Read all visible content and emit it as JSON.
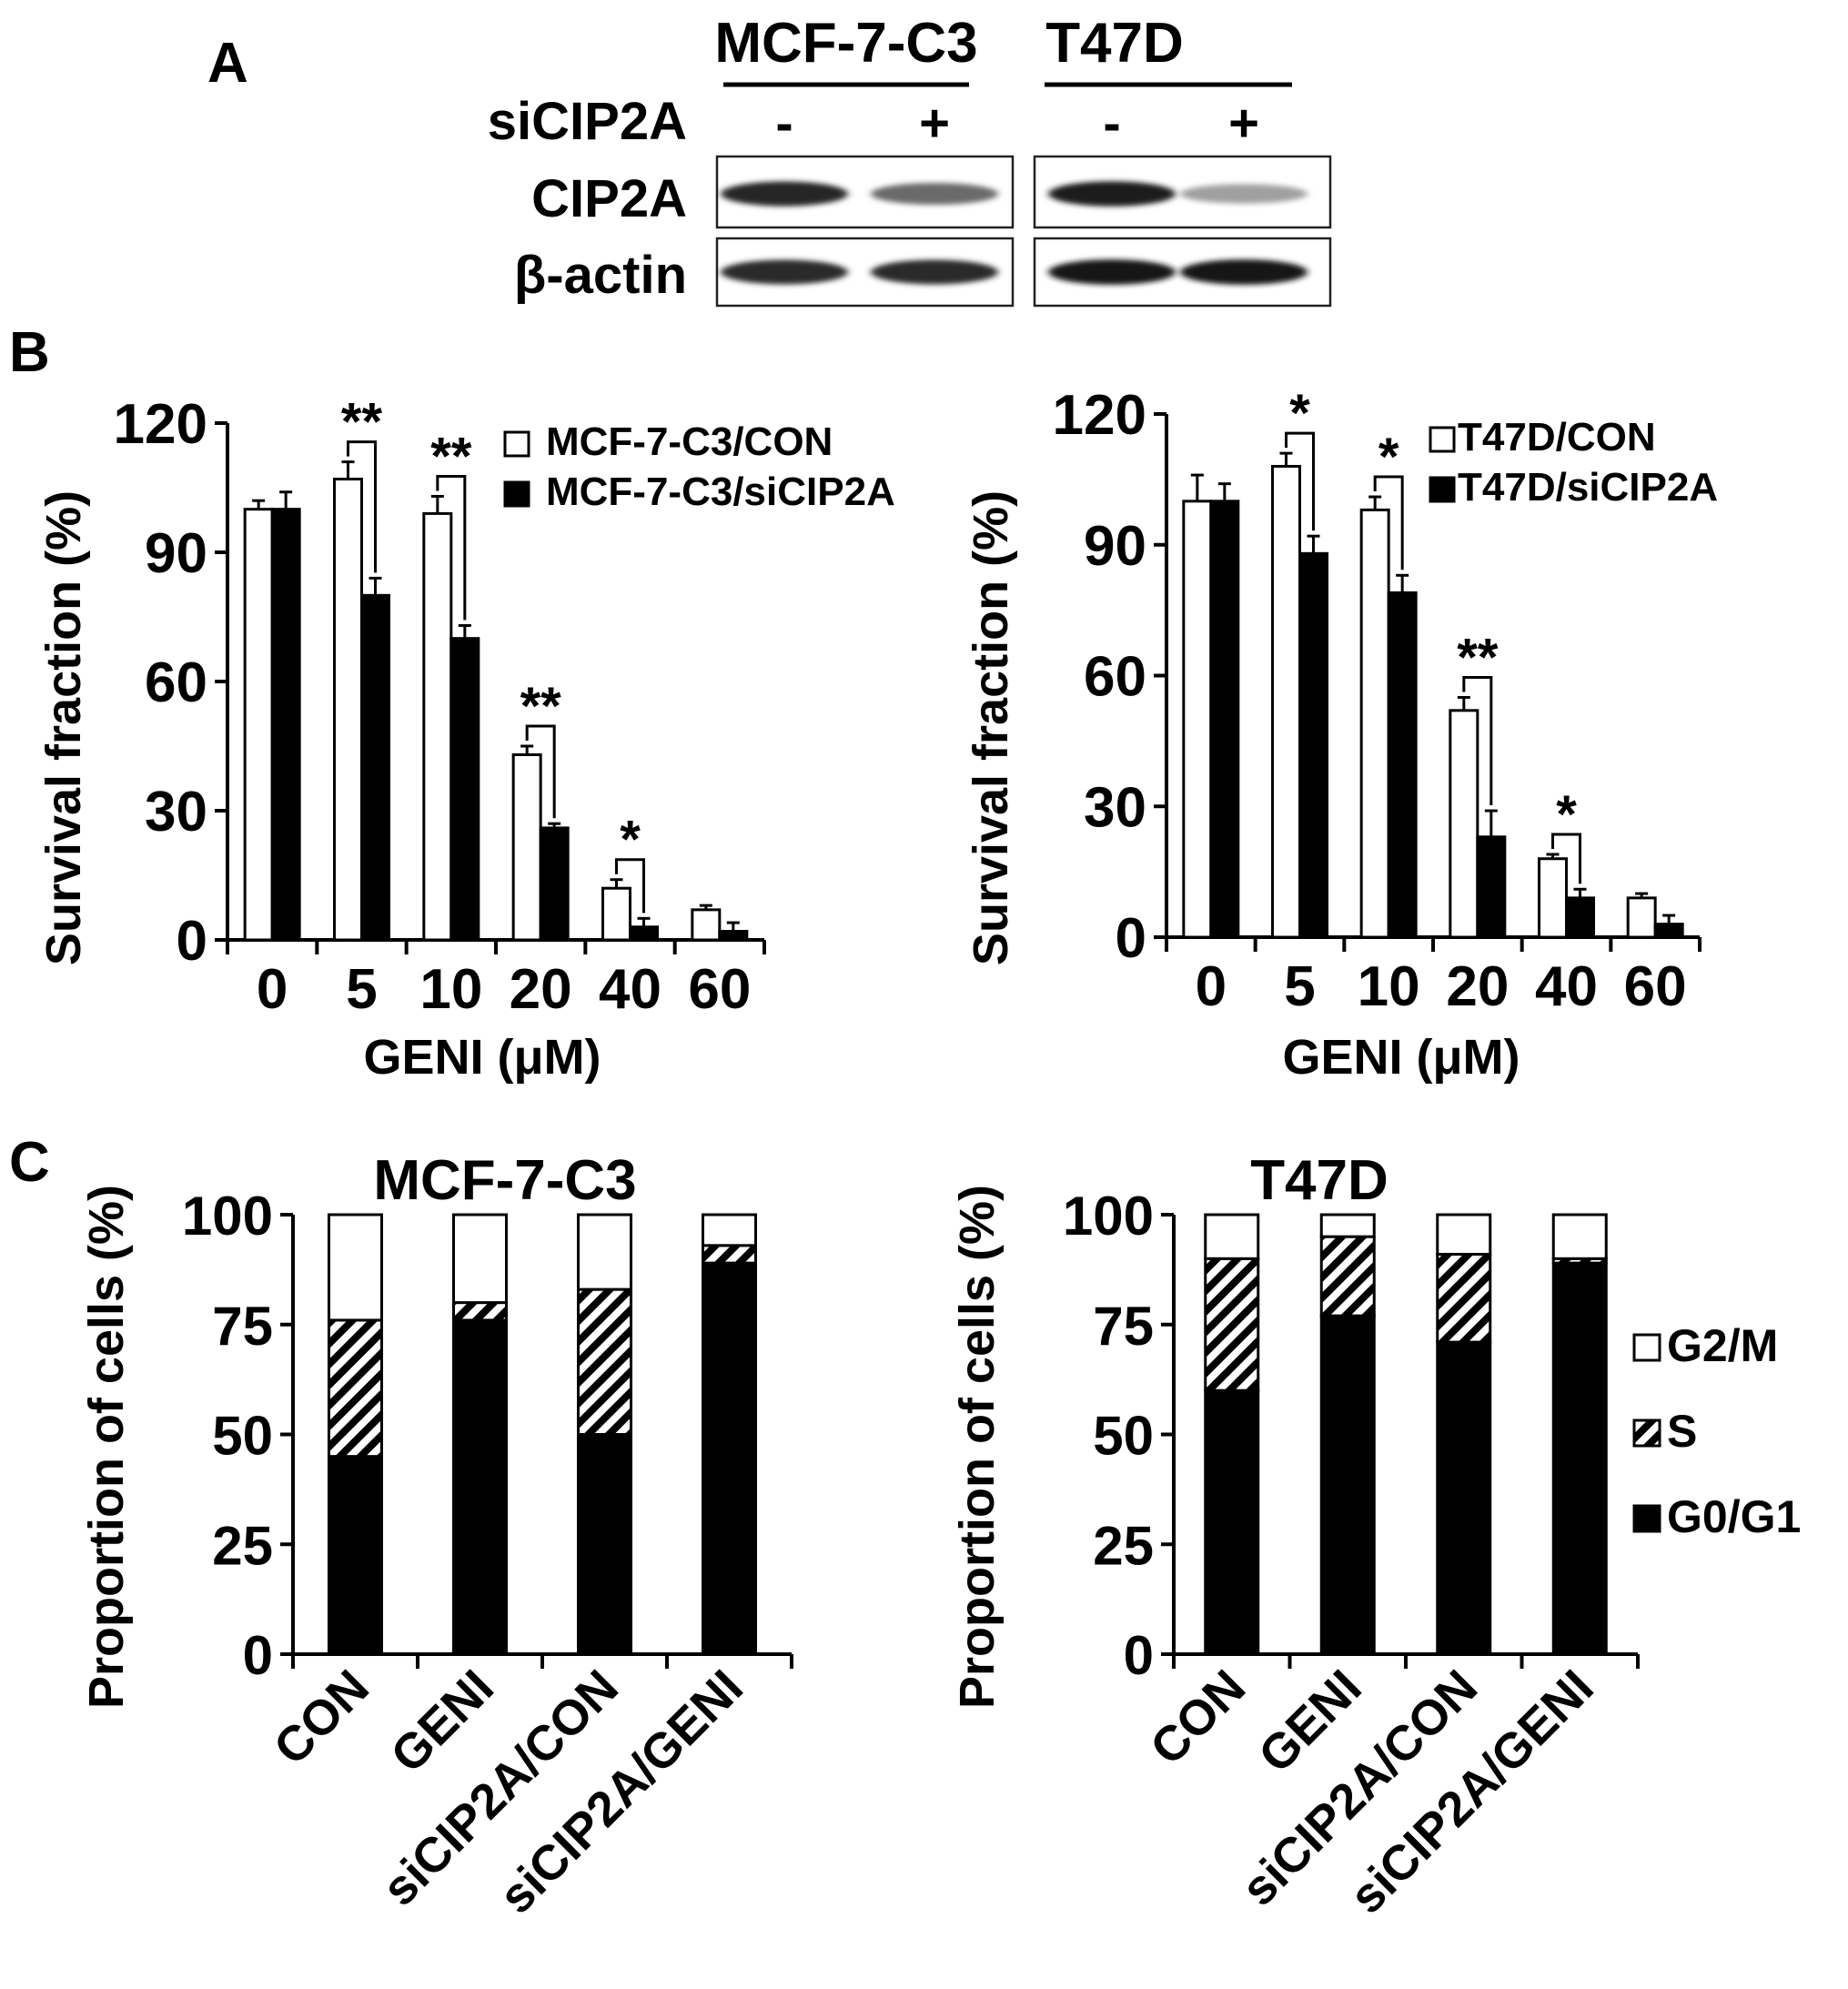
{
  "panel_labels": {
    "a": "A",
    "b": "B",
    "c": "C"
  },
  "blot": {
    "cell_lines": [
      "MCF-7-C3",
      "T47D"
    ],
    "treatment_label": "siCIP2A",
    "lane_signs": [
      "-",
      "+",
      "-",
      "+"
    ],
    "rows": [
      {
        "label": "CIP2A",
        "band_intensity": [
          0.92,
          0.6,
          0.95,
          0.35
        ]
      },
      {
        "label": "β-actin",
        "band_intensity": [
          0.9,
          0.9,
          0.98,
          0.98
        ]
      }
    ]
  },
  "chart_data": [
    {
      "type": "bar",
      "panel": "B",
      "xlabel": "GENI (μM)",
      "ylabel": "Survival fraction  (%)",
      "ylim": [
        0,
        120
      ],
      "yticks": [
        0,
        30,
        60,
        90,
        120
      ],
      "categories": [
        "0",
        "5",
        "10",
        "20",
        "40",
        "60"
      ],
      "legend_position": "top-right",
      "series": [
        {
          "name": "MCF-7-C3/CON",
          "color": "#ffffff",
          "values": [
            100,
            107,
            99,
            43,
            12,
            7
          ],
          "errors": [
            2,
            4,
            4,
            2,
            2,
            1
          ]
        },
        {
          "name": "MCF-7-C3/siCIP2A",
          "color": "#000000",
          "values": [
            100,
            80,
            70,
            26,
            3,
            2
          ],
          "errors": [
            4,
            4,
            3,
            1,
            2,
            2
          ]
        }
      ],
      "significance": [
        {
          "category": "5",
          "label": "**"
        },
        {
          "category": "10",
          "label": "**"
        },
        {
          "category": "20",
          "label": "**"
        },
        {
          "category": "40",
          "label": "*"
        }
      ]
    },
    {
      "type": "bar",
      "panel": "B",
      "xlabel": "GENI (μM)",
      "ylabel": "Survival fraction  (%)",
      "ylim": [
        0,
        120
      ],
      "yticks": [
        0,
        30,
        60,
        90,
        120
      ],
      "categories": [
        "0",
        "5",
        "10",
        "20",
        "40",
        "60"
      ],
      "legend_position": "top-right",
      "series": [
        {
          "name": "T47D/CON",
          "color": "#ffffff",
          "values": [
            100,
            108,
            98,
            52,
            18,
            9
          ],
          "errors": [
            6,
            3,
            3,
            3,
            1,
            1
          ]
        },
        {
          "name": "T47D/siCIP2A",
          "color": "#000000",
          "values": [
            100,
            88,
            79,
            23,
            9,
            3
          ],
          "errors": [
            4,
            4,
            4,
            6,
            2,
            2
          ]
        }
      ],
      "significance": [
        {
          "category": "5",
          "label": "*"
        },
        {
          "category": "10",
          "label": "*"
        },
        {
          "category": "20",
          "label": "**"
        },
        {
          "category": "40",
          "label": "*"
        }
      ]
    },
    {
      "type": "bar",
      "stacked": true,
      "panel": "C",
      "title": "MCF-7-C3",
      "ylabel": "Proportion of cells (%)",
      "ylim": [
        0,
        100
      ],
      "yticks": [
        0,
        25,
        50,
        75,
        100
      ],
      "categories": [
        "CON",
        "GENI",
        "siCIP2A/CON",
        "siCIP2A/GENI"
      ],
      "series": [
        {
          "name": "G0/G1",
          "fill": "solid-black",
          "values": [
            45,
            76,
            50,
            89
          ]
        },
        {
          "name": "S",
          "fill": "hatched",
          "values": [
            31,
            4,
            33,
            4
          ]
        },
        {
          "name": "G2/M",
          "fill": "white",
          "values": [
            24,
            20,
            17,
            7
          ]
        }
      ]
    },
    {
      "type": "bar",
      "stacked": true,
      "panel": "C",
      "title": "T47D",
      "ylabel": "Proportion of cells (%)",
      "ylim": [
        0,
        100
      ],
      "yticks": [
        0,
        25,
        50,
        75,
        100
      ],
      "categories": [
        "CON",
        "GENI",
        "siCIP2A/CON",
        "siCIP2A/GENI"
      ],
      "legend_position": "right",
      "series": [
        {
          "name": "G0/G1",
          "fill": "solid-black",
          "values": [
            60,
            77,
            71,
            89
          ]
        },
        {
          "name": "S",
          "fill": "hatched",
          "values": [
            30,
            18,
            20,
            1
          ]
        },
        {
          "name": "G2/M",
          "fill": "white",
          "values": [
            10,
            5,
            9,
            10
          ]
        }
      ]
    }
  ]
}
